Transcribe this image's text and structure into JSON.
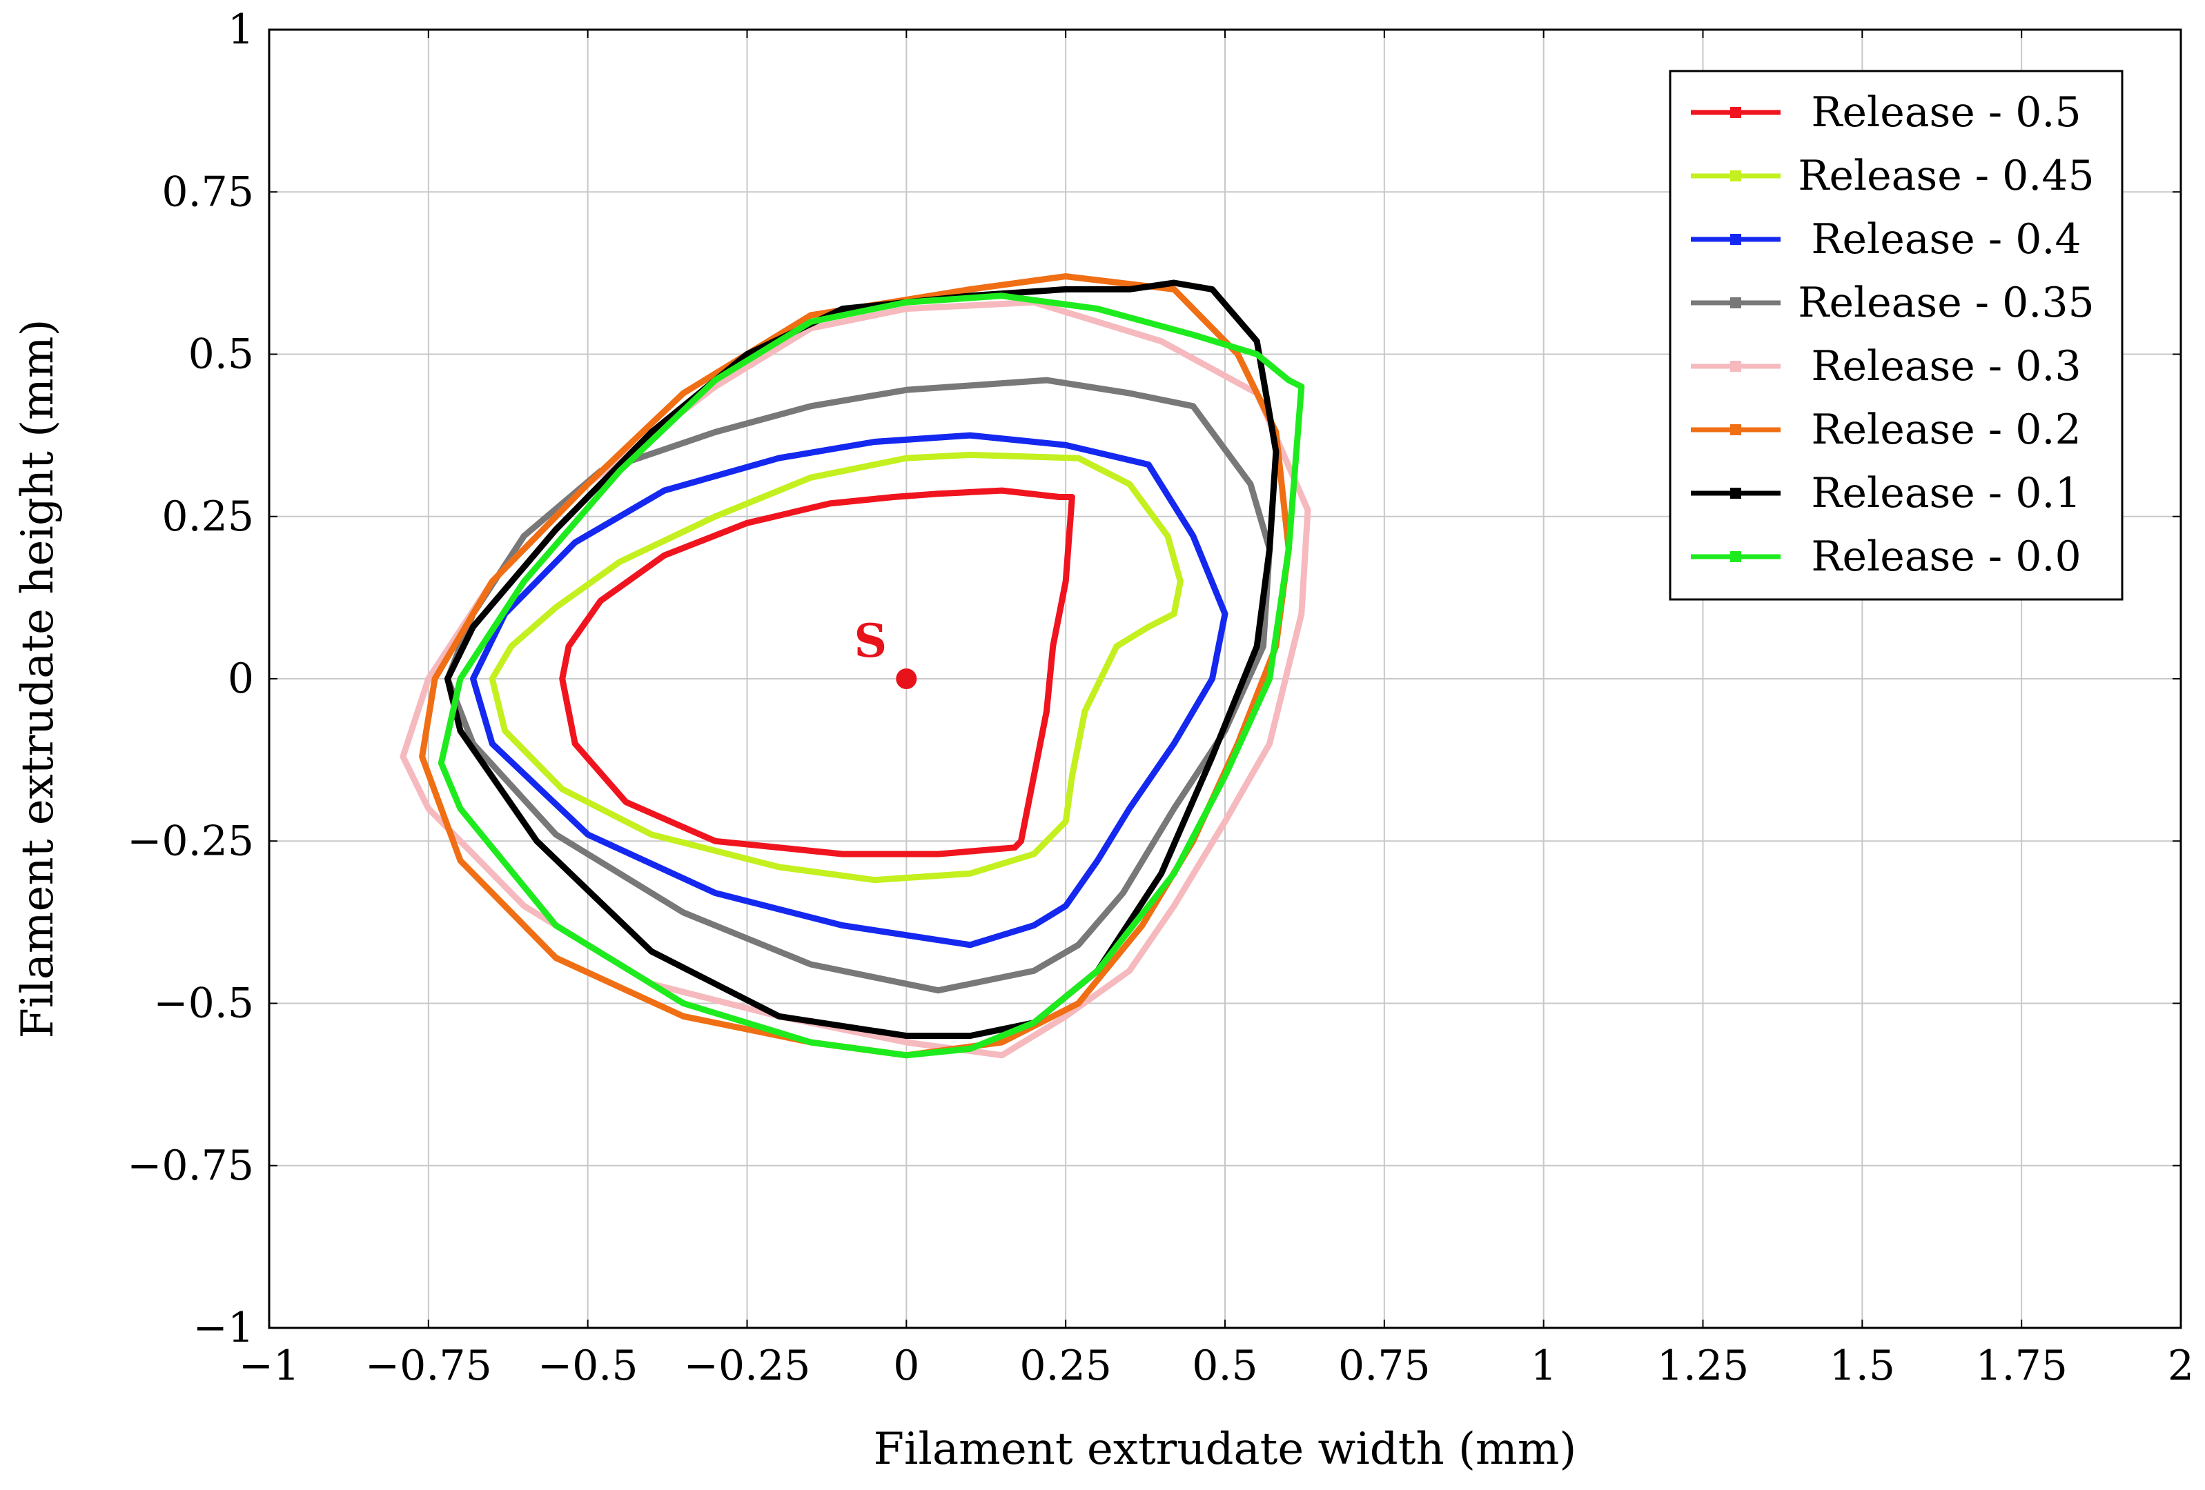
{
  "chart_data": {
    "type": "line",
    "title": "",
    "xlabel": "Filament extrudate width (mm)",
    "ylabel": "Filament extrudate height (mm)",
    "xlim": [
      -1,
      2
    ],
    "ylim": [
      -1,
      1
    ],
    "grid": true,
    "legend_position": "top-right",
    "x_ticks": [
      -1,
      -0.75,
      -0.5,
      -0.25,
      0,
      0.25,
      0.5,
      0.75,
      1,
      1.25,
      1.5,
      1.75,
      2
    ],
    "x_tick_labels": [
      "−1",
      "−0.75",
      "−0.5",
      "−0.25",
      "0",
      "0.25",
      "0.5",
      "0.75",
      "1",
      "1.25",
      "1.5",
      "1.75",
      "2"
    ],
    "y_ticks": [
      -1,
      -0.75,
      -0.5,
      -0.25,
      0,
      0.25,
      0.5,
      0.75,
      1
    ],
    "y_tick_labels": [
      "−1",
      "−0.75",
      "−0.5",
      "−0.25",
      "0",
      "0.25",
      "0.5",
      "0.75",
      "1"
    ],
    "annotations": [
      {
        "text": "S",
        "x": 0,
        "y": 0,
        "color": "#e8121a"
      }
    ],
    "series": [
      {
        "name": "Release - 0.5",
        "color": "#f0141e",
        "x": [
          0.26,
          0.25,
          0.23,
          0.22,
          0.2,
          0.18,
          0.17,
          0.05,
          -0.1,
          -0.3,
          -0.44,
          -0.52,
          -0.54,
          -0.53,
          -0.48,
          -0.38,
          -0.25,
          -0.12,
          -0.02,
          0.05,
          0.15,
          0.24,
          0.26
        ],
        "y": [
          0.28,
          0.15,
          0.05,
          -0.05,
          -0.15,
          -0.25,
          -0.26,
          -0.27,
          -0.27,
          -0.25,
          -0.19,
          -0.1,
          0.0,
          0.05,
          0.12,
          0.19,
          0.24,
          0.27,
          0.28,
          0.285,
          0.29,
          0.28,
          0.28
        ]
      },
      {
        "name": "Release - 0.45",
        "color": "#c3f01e",
        "x": [
          0.27,
          0.35,
          0.41,
          0.43,
          0.42,
          0.38,
          0.33,
          0.28,
          0.26,
          0.25,
          0.2,
          0.1,
          -0.05,
          -0.2,
          -0.4,
          -0.54,
          -0.63,
          -0.65,
          -0.62,
          -0.55,
          -0.45,
          -0.3,
          -0.15,
          0.0,
          0.1,
          0.27
        ],
        "y": [
          0.34,
          0.3,
          0.22,
          0.15,
          0.1,
          0.08,
          0.05,
          -0.05,
          -0.15,
          -0.22,
          -0.27,
          -0.3,
          -0.31,
          -0.29,
          -0.24,
          -0.17,
          -0.08,
          0.0,
          0.05,
          0.11,
          0.18,
          0.25,
          0.31,
          0.34,
          0.345,
          0.34
        ]
      },
      {
        "name": "Release - 0.4",
        "color": "#1428ef",
        "x": [
          0.1,
          0.25,
          0.38,
          0.45,
          0.5,
          0.48,
          0.42,
          0.35,
          0.3,
          0.25,
          0.2,
          0.1,
          -0.1,
          -0.3,
          -0.5,
          -0.65,
          -0.68,
          -0.63,
          -0.52,
          -0.38,
          -0.2,
          -0.05,
          0.1
        ],
        "y": [
          0.375,
          0.36,
          0.33,
          0.22,
          0.1,
          0.0,
          -0.1,
          -0.2,
          -0.28,
          -0.35,
          -0.38,
          -0.41,
          -0.38,
          -0.33,
          -0.24,
          -0.1,
          0.0,
          0.1,
          0.21,
          0.29,
          0.34,
          0.365,
          0.375
        ]
      },
      {
        "name": "Release - 0.35",
        "color": "#787878",
        "x": [
          0.22,
          0.35,
          0.45,
          0.54,
          0.57,
          0.56,
          0.5,
          0.42,
          0.34,
          0.27,
          0.2,
          0.05,
          -0.15,
          -0.35,
          -0.55,
          -0.68,
          -0.72,
          -0.68,
          -0.6,
          -0.48,
          -0.3,
          -0.15,
          0.0,
          0.22
        ],
        "y": [
          0.46,
          0.44,
          0.42,
          0.3,
          0.2,
          0.05,
          -0.08,
          -0.2,
          -0.33,
          -0.41,
          -0.45,
          -0.48,
          -0.44,
          -0.36,
          -0.24,
          -0.1,
          0.0,
          0.1,
          0.22,
          0.32,
          0.38,
          0.42,
          0.445,
          0.46
        ]
      },
      {
        "name": "Release - 0.3",
        "color": "#f5b9be",
        "x": [
          0.0,
          0.2,
          0.4,
          0.55,
          0.63,
          0.62,
          0.57,
          0.5,
          0.42,
          0.35,
          0.25,
          0.15,
          0.0,
          -0.2,
          -0.4,
          -0.6,
          -0.75,
          -0.79,
          -0.75,
          -0.65,
          -0.5,
          -0.3,
          -0.15,
          0.0
        ],
        "y": [
          0.57,
          0.58,
          0.52,
          0.44,
          0.26,
          0.1,
          -0.1,
          -0.22,
          -0.35,
          -0.45,
          -0.52,
          -0.58,
          -0.56,
          -0.52,
          -0.47,
          -0.35,
          -0.2,
          -0.12,
          0.0,
          0.15,
          0.3,
          0.45,
          0.54,
          0.57
        ]
      },
      {
        "name": "Release - 0.2",
        "color": "#f06e14",
        "x": [
          0.1,
          0.25,
          0.42,
          0.52,
          0.58,
          0.6,
          0.58,
          0.52,
          0.45,
          0.37,
          0.27,
          0.15,
          0.0,
          -0.15,
          -0.35,
          -0.55,
          -0.7,
          -0.76,
          -0.74,
          -0.65,
          -0.5,
          -0.35,
          -0.15,
          0.1
        ],
        "y": [
          0.6,
          0.62,
          0.6,
          0.5,
          0.38,
          0.2,
          0.05,
          -0.1,
          -0.25,
          -0.38,
          -0.5,
          -0.56,
          -0.58,
          -0.56,
          -0.52,
          -0.43,
          -0.28,
          -0.12,
          0.0,
          0.15,
          0.3,
          0.44,
          0.56,
          0.6
        ]
      },
      {
        "name": "Release - 0.1",
        "color": "#000000",
        "x": [
          0.1,
          0.25,
          0.35,
          0.42,
          0.48,
          0.55,
          0.58,
          0.57,
          0.55,
          0.48,
          0.4,
          0.3,
          0.2,
          0.1,
          0.0,
          -0.2,
          -0.4,
          -0.58,
          -0.7,
          -0.72,
          -0.68,
          -0.55,
          -0.4,
          -0.25,
          -0.1,
          0.0,
          0.1
        ],
        "y": [
          0.59,
          0.6,
          0.6,
          0.61,
          0.6,
          0.52,
          0.35,
          0.2,
          0.05,
          -0.12,
          -0.3,
          -0.45,
          -0.53,
          -0.55,
          -0.55,
          -0.52,
          -0.42,
          -0.25,
          -0.08,
          0.0,
          0.08,
          0.23,
          0.38,
          0.5,
          0.57,
          0.58,
          0.59
        ]
      },
      {
        "name": "Release - 0.0",
        "color": "#1eeb1e",
        "x": [
          0.0,
          0.15,
          0.3,
          0.45,
          0.55,
          0.6,
          0.62,
          0.6,
          0.57,
          0.5,
          0.42,
          0.3,
          0.2,
          0.1,
          0.0,
          -0.15,
          -0.35,
          -0.55,
          -0.7,
          -0.73,
          -0.7,
          -0.6,
          -0.45,
          -0.3,
          -0.15,
          0.0
        ],
        "y": [
          0.58,
          0.59,
          0.57,
          0.53,
          0.5,
          0.46,
          0.45,
          0.2,
          0.0,
          -0.15,
          -0.3,
          -0.45,
          -0.53,
          -0.57,
          -0.58,
          -0.56,
          -0.5,
          -0.38,
          -0.2,
          -0.13,
          0.0,
          0.15,
          0.32,
          0.46,
          0.55,
          0.58
        ]
      }
    ]
  }
}
